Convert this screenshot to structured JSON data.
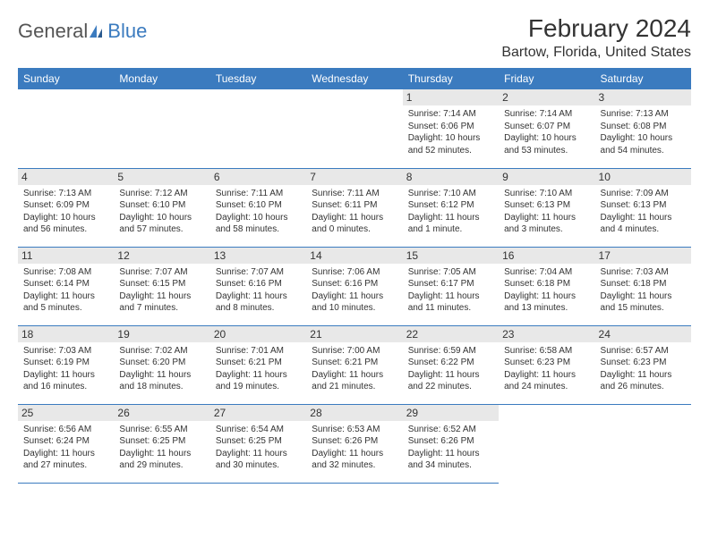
{
  "logo": {
    "part1": "General",
    "part2": "Blue"
  },
  "title": "February 2024",
  "location": "Bartow, Florida, United States",
  "colors": {
    "header_bg": "#3b7bbf",
    "header_text": "#ffffff",
    "daynum_bg": "#e8e8e8",
    "border": "#3b7bbf",
    "body_text": "#333333",
    "logo_gray": "#555555",
    "logo_blue": "#3b7bbf"
  },
  "fonts": {
    "title_size": 28,
    "location_size": 16,
    "dayhead_size": 12,
    "cell_size": 10
  },
  "dayNames": [
    "Sunday",
    "Monday",
    "Tuesday",
    "Wednesday",
    "Thursday",
    "Friday",
    "Saturday"
  ],
  "weeks": [
    [
      null,
      null,
      null,
      null,
      {
        "n": "1",
        "sr": "7:14 AM",
        "ss": "6:06 PM",
        "dl": "10 hours and 52 minutes."
      },
      {
        "n": "2",
        "sr": "7:14 AM",
        "ss": "6:07 PM",
        "dl": "10 hours and 53 minutes."
      },
      {
        "n": "3",
        "sr": "7:13 AM",
        "ss": "6:08 PM",
        "dl": "10 hours and 54 minutes."
      }
    ],
    [
      {
        "n": "4",
        "sr": "7:13 AM",
        "ss": "6:09 PM",
        "dl": "10 hours and 56 minutes."
      },
      {
        "n": "5",
        "sr": "7:12 AM",
        "ss": "6:10 PM",
        "dl": "10 hours and 57 minutes."
      },
      {
        "n": "6",
        "sr": "7:11 AM",
        "ss": "6:10 PM",
        "dl": "10 hours and 58 minutes."
      },
      {
        "n": "7",
        "sr": "7:11 AM",
        "ss": "6:11 PM",
        "dl": "11 hours and 0 minutes."
      },
      {
        "n": "8",
        "sr": "7:10 AM",
        "ss": "6:12 PM",
        "dl": "11 hours and 1 minute."
      },
      {
        "n": "9",
        "sr": "7:10 AM",
        "ss": "6:13 PM",
        "dl": "11 hours and 3 minutes."
      },
      {
        "n": "10",
        "sr": "7:09 AM",
        "ss": "6:13 PM",
        "dl": "11 hours and 4 minutes."
      }
    ],
    [
      {
        "n": "11",
        "sr": "7:08 AM",
        "ss": "6:14 PM",
        "dl": "11 hours and 5 minutes."
      },
      {
        "n": "12",
        "sr": "7:07 AM",
        "ss": "6:15 PM",
        "dl": "11 hours and 7 minutes."
      },
      {
        "n": "13",
        "sr": "7:07 AM",
        "ss": "6:16 PM",
        "dl": "11 hours and 8 minutes."
      },
      {
        "n": "14",
        "sr": "7:06 AM",
        "ss": "6:16 PM",
        "dl": "11 hours and 10 minutes."
      },
      {
        "n": "15",
        "sr": "7:05 AM",
        "ss": "6:17 PM",
        "dl": "11 hours and 11 minutes."
      },
      {
        "n": "16",
        "sr": "7:04 AM",
        "ss": "6:18 PM",
        "dl": "11 hours and 13 minutes."
      },
      {
        "n": "17",
        "sr": "7:03 AM",
        "ss": "6:18 PM",
        "dl": "11 hours and 15 minutes."
      }
    ],
    [
      {
        "n": "18",
        "sr": "7:03 AM",
        "ss": "6:19 PM",
        "dl": "11 hours and 16 minutes."
      },
      {
        "n": "19",
        "sr": "7:02 AM",
        "ss": "6:20 PM",
        "dl": "11 hours and 18 minutes."
      },
      {
        "n": "20",
        "sr": "7:01 AM",
        "ss": "6:21 PM",
        "dl": "11 hours and 19 minutes."
      },
      {
        "n": "21",
        "sr": "7:00 AM",
        "ss": "6:21 PM",
        "dl": "11 hours and 21 minutes."
      },
      {
        "n": "22",
        "sr": "6:59 AM",
        "ss": "6:22 PM",
        "dl": "11 hours and 22 minutes."
      },
      {
        "n": "23",
        "sr": "6:58 AM",
        "ss": "6:23 PM",
        "dl": "11 hours and 24 minutes."
      },
      {
        "n": "24",
        "sr": "6:57 AM",
        "ss": "6:23 PM",
        "dl": "11 hours and 26 minutes."
      }
    ],
    [
      {
        "n": "25",
        "sr": "6:56 AM",
        "ss": "6:24 PM",
        "dl": "11 hours and 27 minutes."
      },
      {
        "n": "26",
        "sr": "6:55 AM",
        "ss": "6:25 PM",
        "dl": "11 hours and 29 minutes."
      },
      {
        "n": "27",
        "sr": "6:54 AM",
        "ss": "6:25 PM",
        "dl": "11 hours and 30 minutes."
      },
      {
        "n": "28",
        "sr": "6:53 AM",
        "ss": "6:26 PM",
        "dl": "11 hours and 32 minutes."
      },
      {
        "n": "29",
        "sr": "6:52 AM",
        "ss": "6:26 PM",
        "dl": "11 hours and 34 minutes."
      },
      null,
      null
    ]
  ],
  "labels": {
    "sunrise": "Sunrise: ",
    "sunset": "Sunset: ",
    "daylight": "Daylight: "
  }
}
